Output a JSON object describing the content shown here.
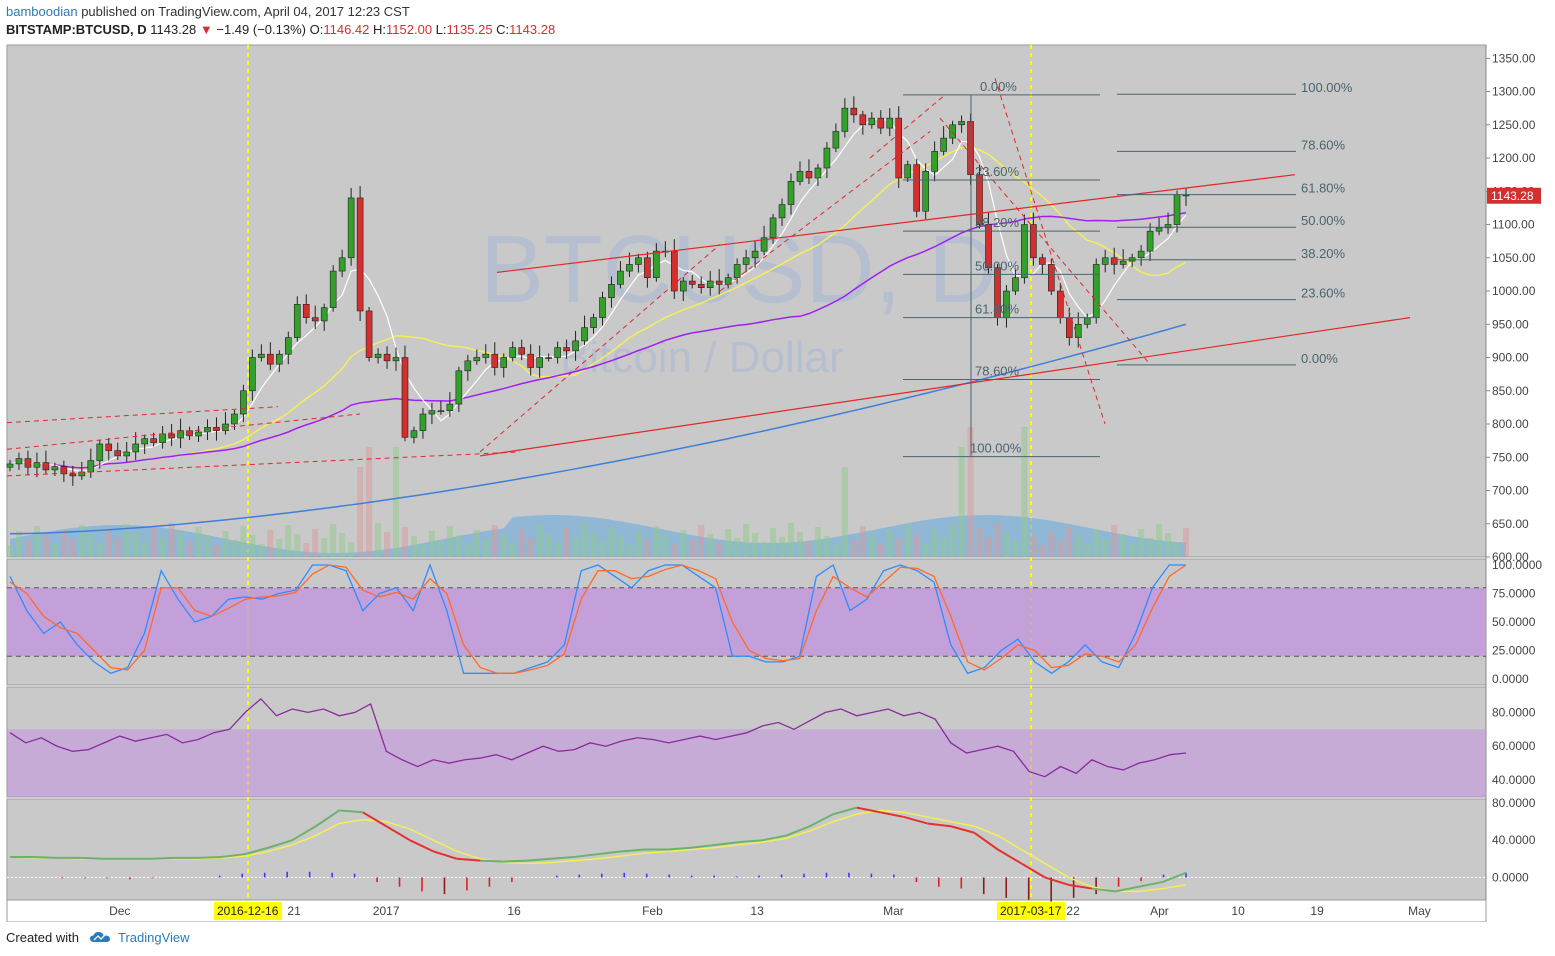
{
  "header": {
    "author": "bamboodian",
    "published_text": "published on TradingView.com, April 04, 2017 12:23 CST",
    "symbol": "BITSTAMP:BTCUSD, D",
    "last": "1143.28",
    "change": "−1.49 (−0.13%)",
    "o_label": "O:",
    "o_value": "1146.42",
    "h_label": "H:",
    "h_value": "1152.00",
    "l_label": "L:",
    "l_value": "1135.25",
    "c_label": "C:",
    "c_value": "1143.28"
  },
  "footer": {
    "created_with": "Created with",
    "brand": "TradingView"
  },
  "watermark": {
    "line1": "BTCUSD, D",
    "line2": "Bitcoin / Dollar"
  },
  "colors": {
    "pane_bg": "#c9c9c9",
    "up": "#33a02c",
    "down": "#d32f2f",
    "sma_yellow": "#f4ee5a",
    "ma_purple": "#a020f0",
    "ma_blue": "#3f7fd9",
    "fib": "#4a6470",
    "trend_red": "#e32727",
    "highlight": "#ffff00",
    "stoch_k": "#2f8cff",
    "stoch_d": "#ff6a2a",
    "rsi": "#8a2b9c",
    "band": "#c191e0"
  },
  "chart_data": [
    {
      "type": "candlestick",
      "title": "BITSTAMP:BTCUSD, D",
      "ylim": [
        600,
        1370
      ],
      "yticks": [
        "1350.00",
        "1300.00",
        "1250.00",
        "1200.00",
        "1150.00",
        "1100.00",
        "1050.00",
        "1000.00",
        "950.00",
        "900.00",
        "850.00",
        "800.00",
        "750.00",
        "700.00",
        "650.00",
        "600.00"
      ],
      "xticks": [
        "Dec",
        "2016-12-16",
        "21",
        "2017",
        "16",
        "Feb",
        "13",
        "Mar",
        "2017-03-17",
        "22",
        "Apr",
        "10",
        "19",
        "May"
      ],
      "last_price_label": "1143.28",
      "fib_left_labels": [
        "0.00%",
        "23.60%",
        "38.20%",
        "50.00%",
        "61.80%",
        "78.60%",
        "100.00%"
      ],
      "fib_left_levels": [
        1295,
        1167,
        1090,
        1025,
        960,
        867,
        751
      ],
      "fib_right_labels": [
        "100.00%",
        "78.60%",
        "61.80%",
        "50.00%",
        "38.20%",
        "23.60%",
        "0.00%"
      ],
      "fib_right_levels": [
        1296,
        1210,
        1145,
        1096,
        1047,
        987,
        889
      ],
      "closes": [
        740,
        748,
        735,
        742,
        731,
        736,
        725,
        722,
        728,
        745,
        770,
        760,
        752,
        758,
        770,
        778,
        772,
        785,
        779,
        790,
        782,
        788,
        795,
        790,
        800,
        815,
        850,
        900,
        905,
        890,
        905,
        930,
        980,
        960,
        955,
        975,
        1030,
        1050,
        1140,
        970,
        900,
        905,
        895,
        900,
        780,
        790,
        815,
        820,
        820,
        830,
        880,
        895,
        900,
        905,
        885,
        900,
        915,
        905,
        885,
        900,
        900,
        915,
        910,
        925,
        945,
        960,
        990,
        1010,
        1030,
        1040,
        1050,
        1020,
        1060,
        1060,
        1000,
        1015,
        1010,
        1005,
        1015,
        1010,
        1020,
        1040,
        1050,
        1060,
        1080,
        1110,
        1130,
        1165,
        1180,
        1170,
        1185,
        1215,
        1240,
        1275,
        1265,
        1250,
        1260,
        1245,
        1260,
        1170,
        1190,
        1120,
        1180,
        1210,
        1230,
        1250,
        1255,
        1175,
        1100,
        1035,
        960,
        1000,
        1020,
        1100,
        1050,
        1040,
        1000,
        960,
        930,
        950,
        960,
        1040,
        1050,
        1040,
        1045,
        1050,
        1060,
        1090,
        1095,
        1100,
        1145,
        1143
      ],
      "volume_bars": 142,
      "overlays": [
        "SMA yellow",
        "MA purple",
        "MA blue",
        "Fibonacci retracements",
        "Trend channel (red)"
      ]
    },
    {
      "type": "line",
      "title": "Stochastic",
      "ylim": [
        0,
        100
      ],
      "yticks": [
        "100.0000",
        "75.0000",
        "50.0000",
        "25.0000",
        "0.0000"
      ],
      "band": [
        20,
        80
      ],
      "series": [
        {
          "values": [
            90,
            60,
            40,
            50,
            30,
            15,
            5,
            10,
            40,
            95,
            70,
            50,
            55,
            70,
            72,
            70,
            75,
            78,
            100,
            100,
            95,
            60,
            75,
            80,
            60,
            100,
            60,
            5,
            5,
            5,
            5,
            10,
            15,
            30,
            95,
            100,
            90,
            80,
            95,
            100,
            100,
            90,
            80,
            20,
            20,
            15,
            15,
            20,
            90,
            100,
            60,
            70,
            95,
            100,
            95,
            85,
            30,
            5,
            10,
            25,
            35,
            15,
            5,
            15,
            30,
            15,
            10,
            40,
            80,
            100,
            100
          ]
        },
        {
          "values": [
            85,
            75,
            55,
            45,
            40,
            25,
            10,
            8,
            25,
            80,
            80,
            60,
            55,
            62,
            70,
            72,
            73,
            76,
            92,
            100,
            98,
            78,
            72,
            76,
            70,
            88,
            75,
            30,
            10,
            5,
            5,
            8,
            12,
            22,
            70,
            95,
            95,
            88,
            90,
            96,
            100,
            95,
            88,
            50,
            25,
            18,
            16,
            18,
            60,
            90,
            80,
            72,
            85,
            98,
            97,
            90,
            55,
            15,
            8,
            18,
            30,
            25,
            10,
            12,
            22,
            20,
            15,
            30,
            62,
            90,
            100
          ]
        }
      ]
    },
    {
      "type": "line",
      "title": "RSI",
      "yticks": [
        "80.0000",
        "60.0000",
        "40.0000"
      ],
      "ylim": [
        30,
        95
      ],
      "band": [
        30,
        70
      ],
      "values": [
        68,
        62,
        65,
        60,
        57,
        58,
        62,
        66,
        63,
        65,
        67,
        62,
        64,
        68,
        70,
        80,
        88,
        78,
        82,
        80,
        82,
        78,
        80,
        85,
        57,
        52,
        48,
        52,
        50,
        52,
        53,
        55,
        52,
        56,
        60,
        57,
        58,
        62,
        60,
        63,
        65,
        64,
        62,
        64,
        66,
        64,
        66,
        68,
        72,
        74,
        70,
        75,
        80,
        82,
        78,
        80,
        82,
        78,
        80,
        76,
        62,
        56,
        58,
        60,
        57,
        45,
        42,
        48,
        44,
        52,
        48,
        46,
        50,
        52,
        55,
        56
      ]
    },
    {
      "type": "line",
      "title": "MACD",
      "ylim": [
        -20,
        80
      ],
      "yticks": [
        "80.0000",
        "40.0000",
        "0.0000"
      ],
      "series": [
        {
          "values": [
            22,
            22,
            21,
            21,
            20,
            20,
            20,
            21,
            21,
            22,
            25,
            32,
            40,
            55,
            72,
            70,
            55,
            40,
            28,
            20,
            18,
            17,
            18,
            20,
            22,
            25,
            28,
            30,
            30,
            32,
            35,
            38,
            40,
            45,
            55,
            68,
            75,
            70,
            65,
            58,
            55,
            48,
            30,
            15,
            0,
            -8,
            -12,
            -15,
            -10,
            -5,
            5
          ]
        },
        {
          "values": [
            22,
            21,
            21,
            20,
            20,
            20,
            20,
            20,
            20,
            21,
            23,
            28,
            35,
            45,
            58,
            62,
            60,
            52,
            40,
            28,
            20,
            16,
            15,
            16,
            18,
            20,
            23,
            26,
            28,
            30,
            32,
            35,
            38,
            42,
            50,
            60,
            68,
            72,
            70,
            65,
            60,
            55,
            45,
            30,
            15,
            0,
            -10,
            -15,
            -15,
            -12,
            -8
          ]
        }
      ],
      "histogram": [
        0,
        -1,
        -1,
        -1,
        -2,
        -1,
        0,
        0,
        2,
        4,
        5,
        6,
        6,
        5,
        4,
        -5,
        -10,
        -15,
        -18,
        -14,
        -10,
        -5,
        0,
        2,
        3,
        4,
        5,
        4,
        3,
        2,
        2,
        1,
        2,
        3,
        4,
        5,
        5,
        4,
        3,
        -5,
        -10,
        -12,
        -18,
        -22,
        -24,
        -26,
        -22,
        -18,
        -10,
        -4,
        3,
        5
      ]
    }
  ]
}
